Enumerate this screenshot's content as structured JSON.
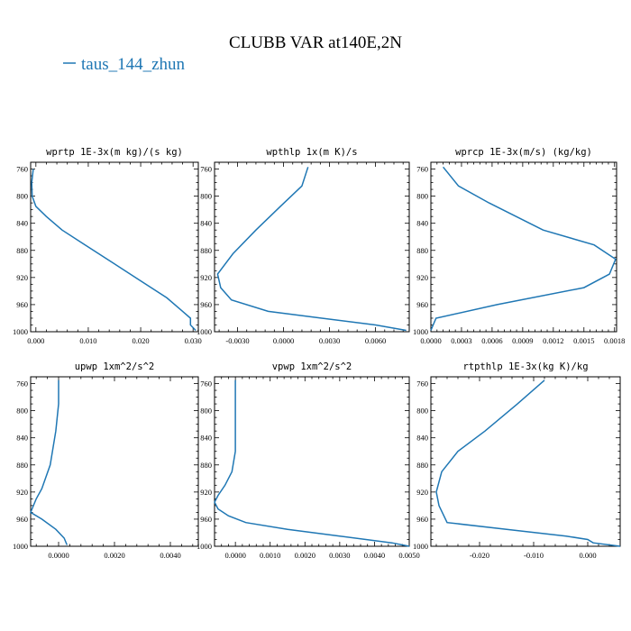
{
  "figure": {
    "title": "CLUBB VAR at140E,2N",
    "legend": {
      "label": "taus_144_zhun",
      "color": "#1f77b4"
    }
  },
  "chart_data": [
    {
      "type": "line",
      "title": "wprtp  1E-3x(m kg)/(s kg)",
      "xlim": [
        -0.001,
        0.031
      ],
      "ylim": [
        1000,
        750
      ],
      "xticks": [
        0.0,
        0.01,
        0.02,
        0.03
      ],
      "xtick_labels": [
        "0.000",
        "0.010",
        "0.020",
        "0.030"
      ],
      "yticks": [
        760,
        800,
        840,
        880,
        920,
        960,
        1000
      ],
      "series": [
        {
          "x": [
            -0.0005,
            -0.0008,
            -0.0007,
            0.0,
            0.002,
            0.005,
            0.009,
            0.014,
            0.02,
            0.025,
            0.028,
            0.0295,
            0.0295,
            0.0305
          ],
          "y": [
            760,
            780,
            800,
            815,
            830,
            850,
            870,
            895,
            925,
            950,
            970,
            980,
            990,
            998
          ]
        }
      ]
    },
    {
      "type": "line",
      "title": "wpthlp  1x(m K)/s",
      "xlim": [
        -0.0045,
        0.0082
      ],
      "ylim": [
        1000,
        750
      ],
      "xticks": [
        -0.003,
        0.0,
        0.003,
        0.006
      ],
      "xtick_labels": [
        "-0.0030",
        "0.0000",
        "0.0030",
        "0.0060"
      ],
      "yticks": [
        760,
        800,
        840,
        880,
        920,
        960,
        1000
      ],
      "series": [
        {
          "x": [
            0.0016,
            0.0012,
            -0.0002,
            -0.0018,
            -0.0033,
            -0.0043,
            -0.0041,
            -0.0034,
            -0.001,
            0.0025,
            0.006,
            0.008
          ],
          "y": [
            757,
            785,
            815,
            850,
            885,
            915,
            935,
            953,
            970,
            980,
            990,
            998
          ]
        }
      ]
    },
    {
      "type": "line",
      "title": "wprcp  1E-3x(m/s) (kg/kg)",
      "xlim": [
        0.0,
        0.00182
      ],
      "ylim": [
        1000,
        750
      ],
      "xticks": [
        0.0,
        0.0003,
        0.0006,
        0.0009,
        0.0012,
        0.0015,
        0.0018
      ],
      "xtick_labels": [
        "0.0000",
        "0.0003",
        "0.0006",
        "0.0009",
        "0.0012",
        "0.0015",
        "0.0018"
      ],
      "yticks": [
        760,
        800,
        840,
        880,
        920,
        960,
        1000
      ],
      "series": [
        {
          "x": [
            0.00012,
            0.00027,
            0.00057,
            0.0011,
            0.0016,
            0.00181,
            0.00175,
            0.0015,
            0.00065,
            5e-05,
            0.0
          ],
          "y": [
            757,
            785,
            810,
            850,
            872,
            893,
            915,
            935,
            960,
            980,
            998
          ]
        }
      ]
    },
    {
      "type": "line",
      "title": "upwp  1xm^2/s^2",
      "xlim": [
        -0.001,
        0.005
      ],
      "ylim": [
        1000,
        750
      ],
      "xticks": [
        0.0,
        0.002,
        0.004
      ],
      "xtick_labels": [
        "0.0000",
        "0.0020",
        "0.0040"
      ],
      "yticks": [
        760,
        800,
        840,
        880,
        920,
        960,
        1000
      ],
      "series": [
        {
          "x": [
            0.0,
            0.0,
            -0.0001,
            -0.0003,
            -0.0006,
            -0.0008,
            -0.001,
            -0.0006,
            -0.0001,
            0.0002,
            0.0003
          ],
          "y": [
            755,
            790,
            830,
            880,
            915,
            930,
            950,
            960,
            975,
            988,
            998
          ]
        }
      ]
    },
    {
      "type": "line",
      "title": "vpwp  1xm^2/s^2",
      "xlim": [
        -0.0006,
        0.005
      ],
      "ylim": [
        1000,
        750
      ],
      "xticks": [
        0.0,
        0.001,
        0.002,
        0.003,
        0.004,
        0.005
      ],
      "xtick_labels": [
        "0.0000",
        "0.0010",
        "0.0020",
        "0.0030",
        "0.0040",
        "0.0050"
      ],
      "yticks": [
        760,
        800,
        840,
        880,
        920,
        960,
        1000
      ],
      "series": [
        {
          "x": [
            0.0,
            0.0,
            0.0,
            -0.0001,
            -0.0003,
            -0.0005,
            -0.0006,
            -0.0005,
            -0.0002,
            0.0003,
            0.0015,
            0.003,
            0.0045,
            0.005
          ],
          "y": [
            755,
            800,
            860,
            890,
            910,
            925,
            935,
            945,
            955,
            965,
            975,
            985,
            995,
            1000
          ]
        }
      ]
    },
    {
      "type": "line",
      "title": "rtpthlp  1E-3x(kg K)/kg",
      "xlim": [
        -0.029,
        0.006
      ],
      "ylim": [
        1000,
        750
      ],
      "xticks": [
        -0.02,
        -0.01,
        0.0
      ],
      "xtick_labels": [
        "-0.020",
        "-0.010",
        "0.000"
      ],
      "yticks": [
        760,
        800,
        840,
        880,
        920,
        960,
        1000
      ],
      "series": [
        {
          "x": [
            -0.008,
            -0.013,
            -0.019,
            -0.024,
            -0.027,
            -0.028,
            -0.0275,
            -0.026,
            -0.015,
            -0.004,
            0.0,
            0.001,
            0.006
          ],
          "y": [
            755,
            790,
            830,
            860,
            890,
            920,
            940,
            965,
            975,
            985,
            990,
            995,
            1000
          ]
        }
      ]
    }
  ]
}
